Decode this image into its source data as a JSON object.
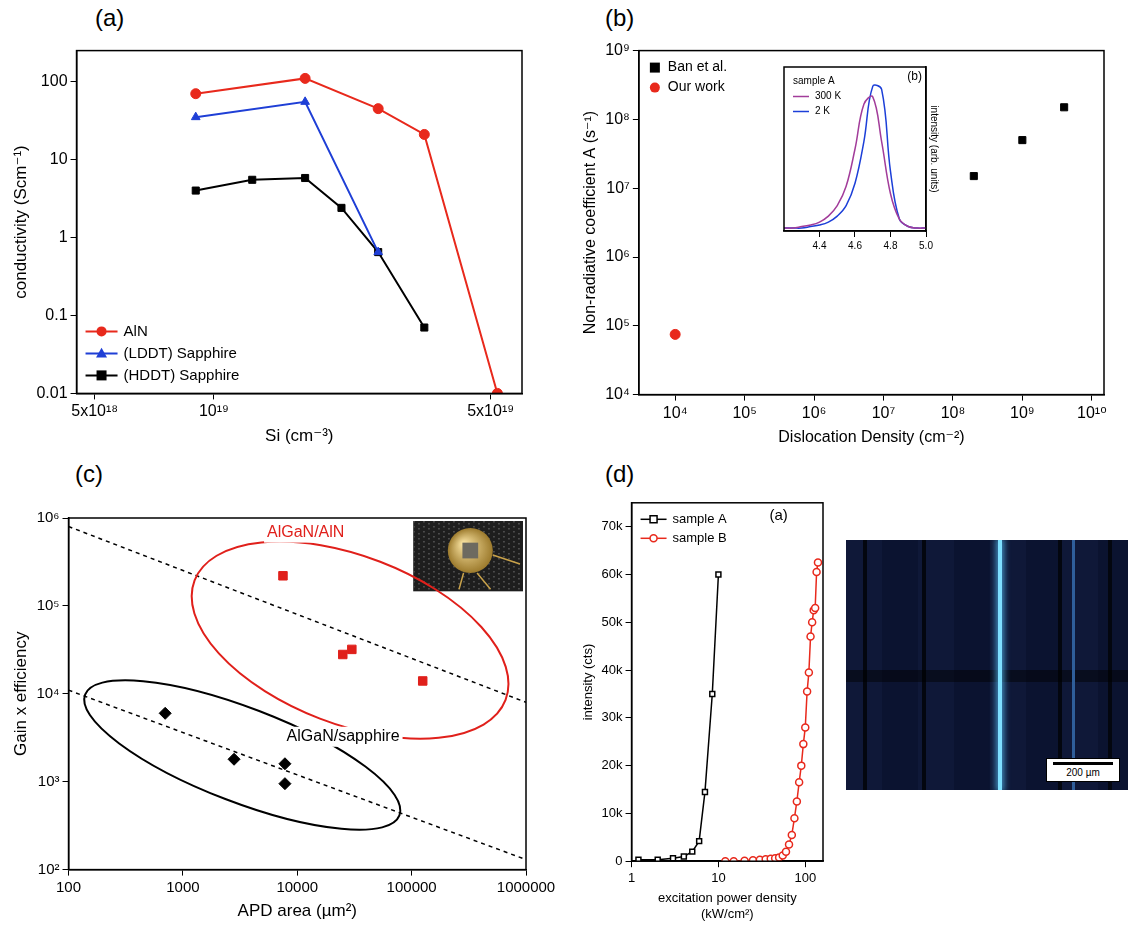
{
  "chart_data": [
    {
      "panel": "(a)",
      "type": "line",
      "log": true,
      "grid": false,
      "legend": "lower left",
      "x_label": "Si (cm⁻³)",
      "y_label": "conductivity (Scm⁻¹)",
      "xlim": [
        4.5e+18,
        6e+19
      ],
      "xticks": [
        {
          "value": 5e+18,
          "label": "5x10¹⁸"
        },
        {
          "value": 1e+19,
          "label": "10¹⁹"
        },
        {
          "value": 5e+19,
          "label": "5x10¹⁹"
        }
      ],
      "ylim": [
        0.01,
        250
      ],
      "yticks": [
        0.01,
        0.1,
        1,
        10,
        100
      ],
      "series": [
        {
          "name": "AlN",
          "color": "#e8291c",
          "marker": "circle",
          "x": [
            9e+18,
            1.7e+19,
            2.6e+19,
            3.4e+19,
            5.2e+19
          ],
          "values": [
            70,
            110,
            45,
            21,
            0.01
          ]
        },
        {
          "name": "(LDDT) Sapphire",
          "color": "#1f3fd6",
          "marker": "triangle",
          "x": [
            9e+18,
            1.7e+19,
            2.6e+19
          ],
          "values": [
            35,
            55,
            0.65
          ]
        },
        {
          "name": "(HDDT) Sapphire",
          "color": "#000000",
          "marker": "square",
          "x": [
            9e+18,
            1.25e+19,
            1.7e+19,
            2.1e+19,
            2.6e+19,
            3.4e+19
          ],
          "values": [
            4,
            5.5,
            5.8,
            2.4,
            0.65,
            0.07
          ]
        }
      ]
    },
    {
      "panel": "(b)",
      "type": "scatter",
      "log": true,
      "grid": false,
      "legend": "upper left",
      "x_label": "Dislocation Density (cm⁻²)",
      "y_label": "Non-radiative coefficient A (s⁻¹)",
      "xlim": [
        3000,
        15000000000
      ],
      "xticks": [
        {
          "value": 10000,
          "label": "10⁴"
        },
        {
          "value": 100000,
          "label": "10⁵"
        },
        {
          "value": 1000000,
          "label": "10⁶"
        },
        {
          "value": 10000000,
          "label": "10⁷"
        },
        {
          "value": 100000000,
          "label": "10⁸"
        },
        {
          "value": 1000000000,
          "label": "10⁹"
        },
        {
          "value": 10000000000,
          "label": "10¹⁰"
        }
      ],
      "ylim": [
        10000,
        1000000000
      ],
      "yticks": [
        {
          "value": 10000,
          "label": "10⁴"
        },
        {
          "value": 100000,
          "label": "10⁵"
        },
        {
          "value": 1000000,
          "label": "10⁶"
        },
        {
          "value": 10000000,
          "label": "10⁷"
        },
        {
          "value": 100000000,
          "label": "10⁸"
        },
        {
          "value": 1000000000,
          "label": "10⁹"
        }
      ],
      "series": [
        {
          "name": "Ban et al.",
          "color": "#000000",
          "marker": "square",
          "x": [
            200000000,
            1000000000,
            4000000000
          ],
          "values": [
            15000000,
            50000000,
            150000000
          ]
        },
        {
          "name": "Our work",
          "color": "#e8291c",
          "marker": "circle",
          "x": [
            10000
          ],
          "values": [
            75000
          ]
        }
      ],
      "inset": {
        "panel": "(b)",
        "type": "line",
        "grid": false,
        "legend": "upper left",
        "legend_title": "sample A",
        "y_label": "intensity (arb. units)",
        "tick_labels": "x",
        "xlim": [
          4.2,
          5.0
        ],
        "xticks": [
          4.4,
          4.6,
          4.8,
          {
            "value": 5,
            "label": "5.0"
          }
        ],
        "ylim": [
          0,
          1.1
        ],
        "x": [
          4.2,
          4.25,
          4.3,
          4.35,
          4.4,
          4.45,
          4.5,
          4.55,
          4.6,
          4.65,
          4.7,
          4.75,
          4.8,
          4.85,
          4.9,
          4.95,
          5.0
        ],
        "series": [
          {
            "name": "300 K",
            "color": "#a23c9a",
            "values": [
              0.02,
              0.02,
              0.03,
              0.04,
              0.06,
              0.1,
              0.17,
              0.3,
              0.55,
              0.85,
              0.9,
              0.6,
              0.25,
              0.08,
              0.03,
              0.02,
              0.02
            ]
          },
          {
            "name": "2 K",
            "color": "#1c3fd8",
            "values": [
              0.02,
              0.02,
              0.02,
              0.03,
              0.04,
              0.06,
              0.1,
              0.17,
              0.32,
              0.6,
              0.97,
              0.95,
              0.4,
              0.08,
              0.03,
              0.02,
              0.02
            ]
          }
        ]
      }
    },
    {
      "panel": "(c)",
      "type": "scatter",
      "log": true,
      "grid": false,
      "x_label": "APD area (µm²)",
      "y_label": "Gain x efficiency",
      "xlim": [
        100,
        1000000
      ],
      "xticks": [
        100,
        1000,
        10000,
        100000,
        1000000
      ],
      "ylim": [
        100,
        1000000
      ],
      "yticks": [
        {
          "value": 100,
          "label": "10²"
        },
        {
          "value": 1000,
          "label": "10³"
        },
        {
          "value": 10000,
          "label": "10⁴"
        },
        {
          "value": 100000,
          "label": "10⁵"
        },
        {
          "value": 1000000,
          "label": "10⁶"
        }
      ],
      "series": [
        {
          "name": "AlGaN/AlN",
          "color": "#e0201b",
          "marker": "square",
          "x": [
            7500,
            25000,
            30000,
            125000
          ],
          "values": [
            220000,
            28000,
            32000,
            14000
          ]
        },
        {
          "name": "AlGaN/sapphire",
          "color": "#000000",
          "marker": "diamond",
          "x": [
            700,
            2800,
            7800,
            7800
          ],
          "values": [
            6000,
            1800,
            1600,
            950
          ]
        }
      ],
      "fit_lines": [
        {
          "color": "#000000",
          "line_style": "dashed",
          "x": [
            100,
            1000000
          ],
          "values": [
            800000,
            8000
          ]
        },
        {
          "color": "#000000",
          "line_style": "dashed",
          "x": [
            100,
            1000000
          ],
          "values": [
            11000,
            130
          ]
        }
      ]
    },
    {
      "panel": "(d)",
      "type": "line",
      "log": "x",
      "grid": false,
      "legend": "upper left",
      "annotation": "(a)",
      "x_label": "excitation power density (kW/cm²)",
      "y_label": "intensity (cts)",
      "xlim": [
        1,
        160
      ],
      "xticks": [
        1,
        10,
        100
      ],
      "ylim": [
        0,
        75000
      ],
      "yticks": [
        0,
        {
          "value": 10000,
          "label": "10k"
        },
        {
          "value": 20000,
          "label": "20k"
        },
        {
          "value": 30000,
          "label": "30k"
        },
        {
          "value": 40000,
          "label": "40k"
        },
        {
          "value": 50000,
          "label": "50k"
        },
        {
          "value": 60000,
          "label": "60k"
        },
        {
          "value": 70000,
          "label": "70k"
        }
      ],
      "series": [
        {
          "name": "sample A",
          "color": "#000000",
          "marker": "open-square",
          "x": [
            1.2,
            2,
            3,
            4,
            5,
            6,
            7,
            8.5,
            10
          ],
          "values": [
            300,
            300,
            600,
            1000,
            2000,
            4200,
            14500,
            35000,
            60000
          ]
        },
        {
          "name": "sample B",
          "color": "#e8291c",
          "marker": "open-circle",
          "x": [
            12,
            15,
            20,
            25,
            30,
            35,
            40,
            45,
            50,
            55,
            60,
            65,
            70,
            75,
            80,
            85,
            90,
            95,
            100,
            105,
            110,
            115,
            120,
            125,
            130,
            135,
            140
          ],
          "values": [
            0,
            0,
            100,
            200,
            300,
            400,
            500,
            600,
            800,
            1200,
            2000,
            3500,
            5500,
            9000,
            12500,
            16500,
            20000,
            24500,
            28000,
            35500,
            39500,
            47000,
            50000,
            52500,
            53000,
            60500,
            62500
          ]
        }
      ],
      "image": {
        "scale_bar": "200 µm"
      }
    }
  ]
}
